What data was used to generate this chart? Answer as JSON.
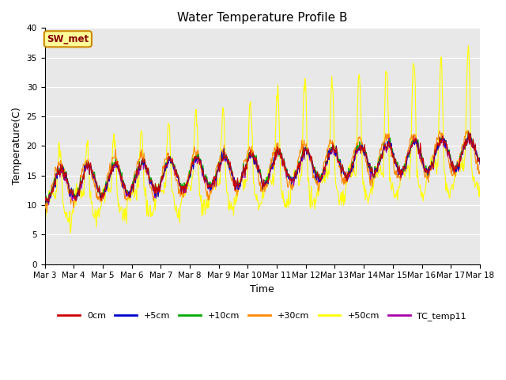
{
  "title": "Water Temperature Profile B",
  "xlabel": "Time",
  "ylabel": "Temperature(C)",
  "ylim": [
    0,
    40
  ],
  "yticks": [
    0,
    5,
    10,
    15,
    20,
    25,
    30,
    35,
    40
  ],
  "xtick_labels": [
    "Mar 3",
    "Mar 4",
    "Mar 5",
    "Mar 6",
    "Mar 7",
    "Mar 8",
    "Mar 9",
    "Mar 10",
    "Mar 11",
    "Mar 12",
    "Mar 13",
    "Mar 14",
    "Mar 15",
    "Mar 16",
    "Mar 17",
    "Mar 18"
  ],
  "series_colors": {
    "0cm": "#cc0000",
    "+5cm": "#0000cc",
    "+10cm": "#00aa00",
    "+30cm": "#ff8800",
    "+50cm": "#ffff00",
    "TC_temp11": "#aa00aa"
  },
  "annotation_text": "SW_met",
  "annotation_facecolor": "#ffff99",
  "annotation_edgecolor": "#cc8800",
  "annotation_textcolor": "#880000",
  "bg_color": "#e8e8e8",
  "fig_bg_color": "#ffffff",
  "legend_ncol": 6
}
